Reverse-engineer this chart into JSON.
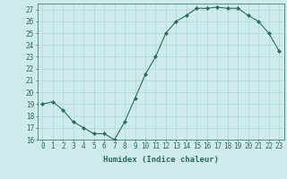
{
  "x": [
    0,
    1,
    2,
    3,
    4,
    5,
    6,
    7,
    8,
    9,
    10,
    11,
    12,
    13,
    14,
    15,
    16,
    17,
    18,
    19,
    20,
    21,
    22,
    23
  ],
  "y": [
    19.0,
    19.2,
    18.5,
    17.5,
    17.0,
    16.5,
    16.5,
    16.0,
    17.5,
    19.5,
    21.5,
    23.0,
    25.0,
    26.0,
    26.5,
    27.1,
    27.1,
    27.2,
    27.1,
    27.1,
    26.5,
    26.0,
    25.0,
    23.5
  ],
  "line_color": "#2e6b5e",
  "marker": "D",
  "marker_size": 2.0,
  "bg_color": "#ceeaea",
  "grid_color": "#a8d4d4",
  "xlabel": "Humidex (Indice chaleur)",
  "ylim": [
    16,
    27.5
  ],
  "yticks": [
    16,
    17,
    18,
    19,
    20,
    21,
    22,
    23,
    24,
    25,
    26,
    27
  ],
  "xlim": [
    -0.5,
    23.5
  ],
  "tick_color": "#2e6b5e",
  "label_fontsize": 6.5,
  "tick_fontsize": 5.5,
  "lw": 0.8
}
